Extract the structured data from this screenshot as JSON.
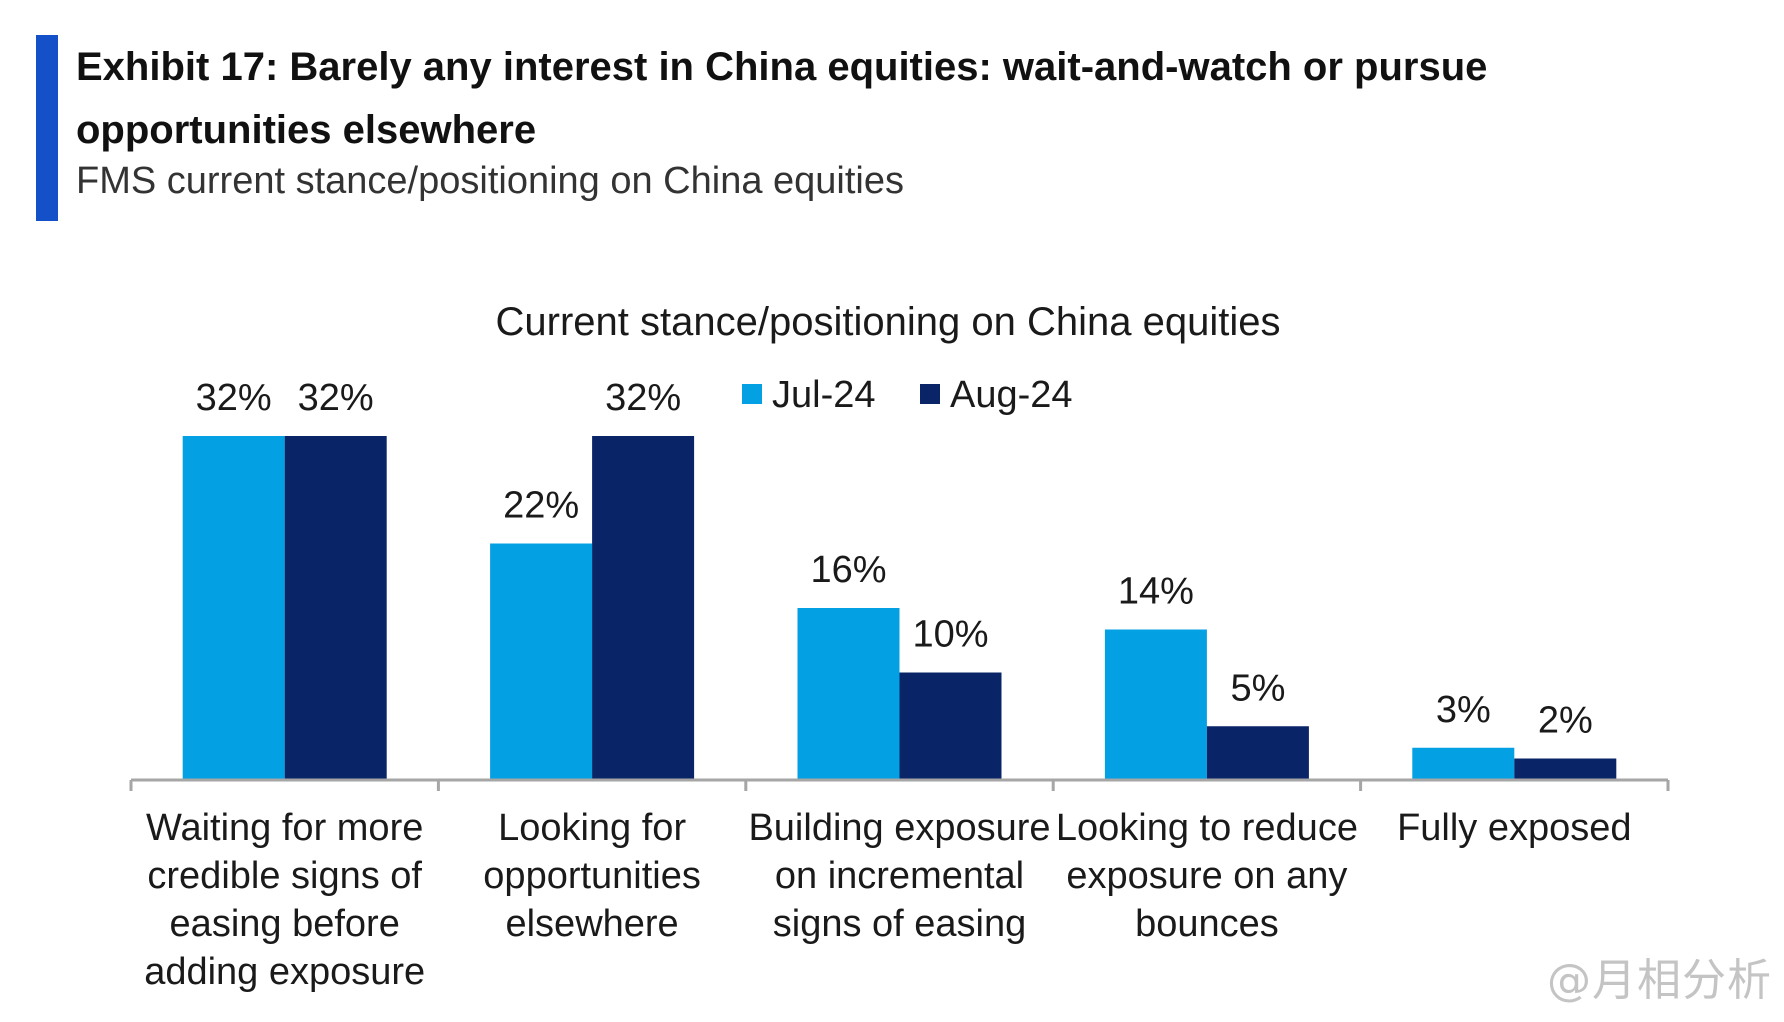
{
  "header": {
    "title": "Exhibit 17: Barely any interest in China equities: wait-and-watch or pursue opportunities elsewhere",
    "subtitle": "FMS current stance/positioning on China equities"
  },
  "watermark": "@月相分析",
  "chart_data": {
    "type": "bar",
    "title": "Current stance/positioning on China equities",
    "xlabel": "",
    "ylabel": "",
    "ylim": [
      0,
      36
    ],
    "grid": false,
    "legend_position": "top-center",
    "categories": [
      [
        "Waiting for more",
        "credible signs of",
        "easing before",
        "adding exposure"
      ],
      [
        "Looking for",
        "opportunities",
        "elsewhere"
      ],
      [
        "Building exposure",
        "on incremental",
        "signs of easing"
      ],
      [
        "Looking to reduce",
        "exposure on any",
        "bounces"
      ],
      [
        "Fully exposed"
      ]
    ],
    "series": [
      {
        "name": "Jul-24",
        "color": "#03a0e3",
        "values": [
          32,
          22,
          16,
          14,
          3
        ],
        "labels": [
          "32%",
          "22%",
          "16%",
          "14%",
          "3%"
        ]
      },
      {
        "name": "Aug-24",
        "color": "#0a2468",
        "values": [
          32,
          32,
          10,
          5,
          2
        ],
        "labels": [
          "32%",
          "32%",
          "10%",
          "5%",
          "2%"
        ]
      }
    ]
  }
}
